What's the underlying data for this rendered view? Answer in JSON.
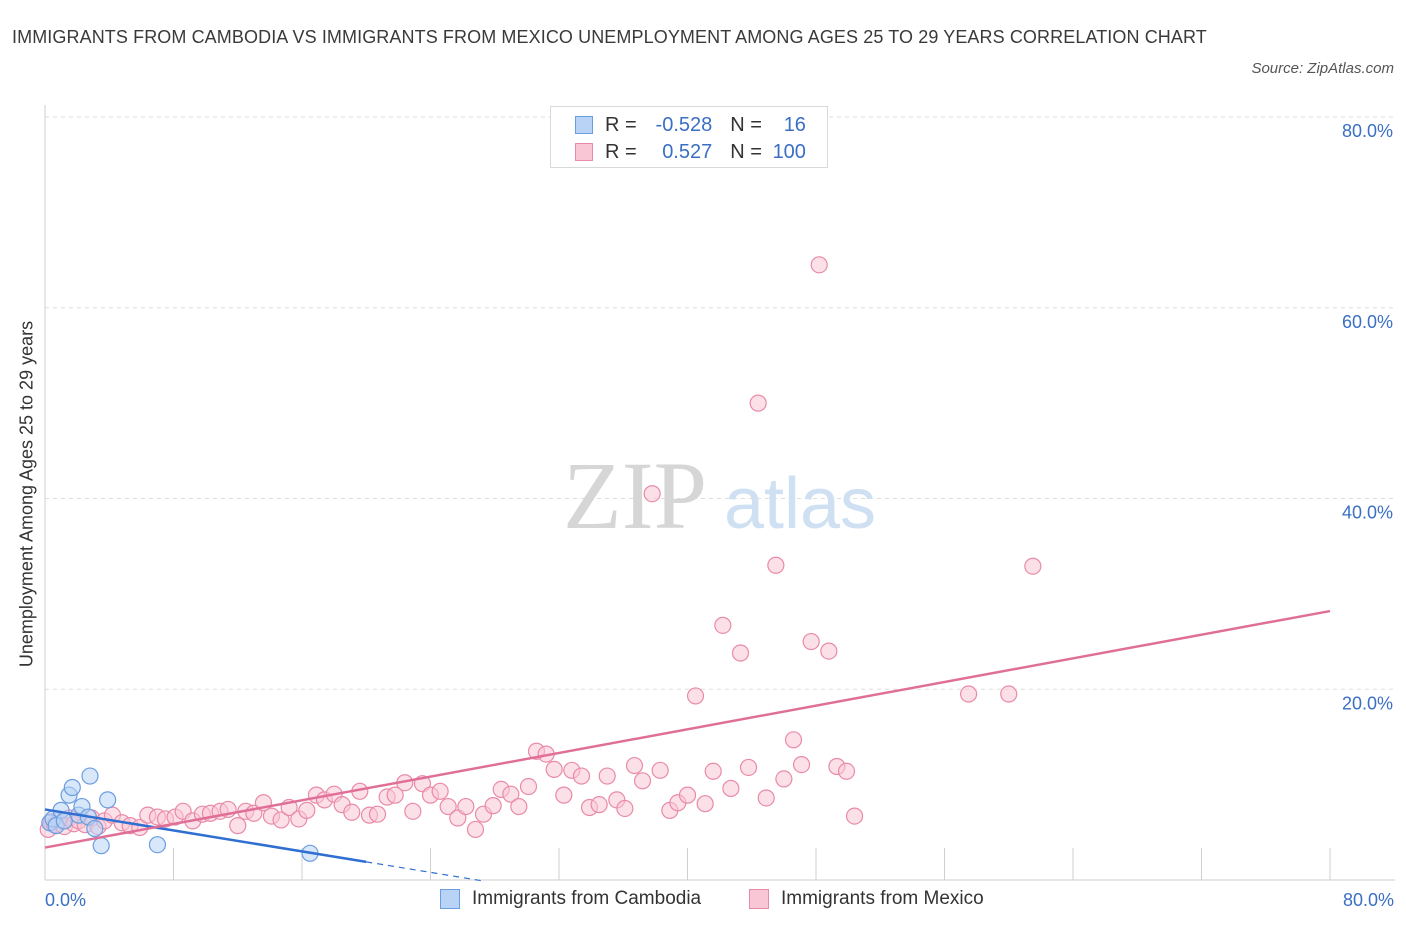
{
  "header": {
    "title": "IMMIGRANTS FROM CAMBODIA VS IMMIGRANTS FROM MEXICO UNEMPLOYMENT AMONG AGES 25 TO 29 YEARS CORRELATION CHART",
    "source": "Source: ZipAtlas.com"
  },
  "watermark": {
    "zip": "ZIP",
    "atlas": "atlas"
  },
  "legend": {
    "cambodia": {
      "r_label": "R =",
      "r_value": "-0.528",
      "n_label": "N =",
      "n_value": "16"
    },
    "mexico": {
      "r_label": "R =",
      "r_value": "0.527",
      "n_label": "N =",
      "n_value": "100"
    }
  },
  "colors": {
    "cambodia_fill": "#b8d3f5",
    "cambodia_stroke": "#6a9ee0",
    "cambodia_line": "#2f6fd1",
    "mexico_fill": "#f9c6d5",
    "mexico_stroke": "#e98aa8",
    "mexico_line": "#e06f98",
    "grid": "#dddddd",
    "axis_text": "#3a6fc4"
  },
  "chart_data": {
    "type": "scatter",
    "title": "IMMIGRANTS FROM CAMBODIA VS IMMIGRANTS FROM MEXICO UNEMPLOYMENT AMONG AGES 25 TO 29 YEARS CORRELATION CHART",
    "xlabel": "",
    "ylabel": "Unemployment Among Ages 25 to 29 years",
    "xlim": [
      0,
      80
    ],
    "ylim": [
      0,
      80
    ],
    "x_tick_labels": [
      "0.0%",
      "80.0%"
    ],
    "y_tick_labels": [
      "20.0%",
      "40.0%",
      "60.0%",
      "80.0%"
    ],
    "y_ticks": [
      20,
      40,
      60,
      80
    ],
    "grid": true,
    "series": [
      {
        "name": "Immigrants from Cambodia",
        "color_key": "cambodia",
        "r": -0.528,
        "n": 16,
        "trend": {
          "x0": 0,
          "y0": 7.4,
          "x1": 20,
          "y1": 1.9,
          "dash_to_x": 27.3
        },
        "points": [
          [
            0.3,
            6.0
          ],
          [
            0.5,
            6.4
          ],
          [
            0.7,
            5.7
          ],
          [
            1.0,
            7.3
          ],
          [
            1.2,
            6.2
          ],
          [
            1.5,
            8.9
          ],
          [
            1.7,
            9.7
          ],
          [
            2.1,
            6.8
          ],
          [
            2.3,
            7.7
          ],
          [
            2.7,
            6.6
          ],
          [
            2.8,
            10.9
          ],
          [
            3.1,
            5.4
          ],
          [
            3.5,
            3.6
          ],
          [
            3.9,
            8.4
          ],
          [
            7.0,
            3.7
          ],
          [
            16.5,
            2.8
          ]
        ]
      },
      {
        "name": "Immigrants from Mexico",
        "color_key": "mexico",
        "r": 0.527,
        "n": 100,
        "trend": {
          "x0": 0,
          "y0": 3.4,
          "x1": 80,
          "y1": 28.2
        },
        "points": [
          [
            0.2,
            5.3
          ],
          [
            0.4,
            6.1
          ],
          [
            0.6,
            5.8
          ],
          [
            0.9,
            6.3
          ],
          [
            1.2,
            5.6
          ],
          [
            1.5,
            6.5
          ],
          [
            1.8,
            5.9
          ],
          [
            2.1,
            6.2
          ],
          [
            2.5,
            5.8
          ],
          [
            2.9,
            6.5
          ],
          [
            3.3,
            5.6
          ],
          [
            3.7,
            6.2
          ],
          [
            4.2,
            6.8
          ],
          [
            4.8,
            6.0
          ],
          [
            5.3,
            5.7
          ],
          [
            5.9,
            5.5
          ],
          [
            6.4,
            6.8
          ],
          [
            7.0,
            6.6
          ],
          [
            7.5,
            6.4
          ],
          [
            8.1,
            6.6
          ],
          [
            8.6,
            7.2
          ],
          [
            9.2,
            6.2
          ],
          [
            9.8,
            6.9
          ],
          [
            10.3,
            7.0
          ],
          [
            10.9,
            7.2
          ],
          [
            11.4,
            7.4
          ],
          [
            12.0,
            5.7
          ],
          [
            12.5,
            7.2
          ],
          [
            13.0,
            7.0
          ],
          [
            13.6,
            8.1
          ],
          [
            14.1,
            6.7
          ],
          [
            14.7,
            6.3
          ],
          [
            15.2,
            7.6
          ],
          [
            15.8,
            6.4
          ],
          [
            16.3,
            7.3
          ],
          [
            16.9,
            8.9
          ],
          [
            17.4,
            8.4
          ],
          [
            18.0,
            9.0
          ],
          [
            18.5,
            7.9
          ],
          [
            19.1,
            7.1
          ],
          [
            19.6,
            9.3
          ],
          [
            20.2,
            6.8
          ],
          [
            20.7,
            6.9
          ],
          [
            21.3,
            8.7
          ],
          [
            21.8,
            8.9
          ],
          [
            22.4,
            10.2
          ],
          [
            22.9,
            7.2
          ],
          [
            23.5,
            10.1
          ],
          [
            24.0,
            8.9
          ],
          [
            24.6,
            9.3
          ],
          [
            25.1,
            7.7
          ],
          [
            25.7,
            6.5
          ],
          [
            26.2,
            7.7
          ],
          [
            26.8,
            5.3
          ],
          [
            27.3,
            6.9
          ],
          [
            27.9,
            7.8
          ],
          [
            28.4,
            9.5
          ],
          [
            29.0,
            9.0
          ],
          [
            29.5,
            7.7
          ],
          [
            30.1,
            9.8
          ],
          [
            30.6,
            13.5
          ],
          [
            31.2,
            13.2
          ],
          [
            31.7,
            11.6
          ],
          [
            32.3,
            8.9
          ],
          [
            32.8,
            11.5
          ],
          [
            33.4,
            10.9
          ],
          [
            33.9,
            7.6
          ],
          [
            34.5,
            7.9
          ],
          [
            35.0,
            10.9
          ],
          [
            35.6,
            8.4
          ],
          [
            36.1,
            7.5
          ],
          [
            36.7,
            12.0
          ],
          [
            37.2,
            10.4
          ],
          [
            37.8,
            40.5
          ],
          [
            38.3,
            11.5
          ],
          [
            38.9,
            7.3
          ],
          [
            39.4,
            8.1
          ],
          [
            40.0,
            8.9
          ],
          [
            40.5,
            19.3
          ],
          [
            41.1,
            8.0
          ],
          [
            41.6,
            11.4
          ],
          [
            42.2,
            26.7
          ],
          [
            42.7,
            9.6
          ],
          [
            43.3,
            23.8
          ],
          [
            43.8,
            11.8
          ],
          [
            44.4,
            50.0
          ],
          [
            44.9,
            8.6
          ],
          [
            45.5,
            33.0
          ],
          [
            46.0,
            10.6
          ],
          [
            46.6,
            14.7
          ],
          [
            47.1,
            12.1
          ],
          [
            47.7,
            25.0
          ],
          [
            48.2,
            64.5
          ],
          [
            48.8,
            24.0
          ],
          [
            49.3,
            11.9
          ],
          [
            49.9,
            11.4
          ],
          [
            50.4,
            6.7
          ],
          [
            57.5,
            19.5
          ],
          [
            60.0,
            19.5
          ],
          [
            61.5,
            32.9
          ]
        ]
      }
    ]
  },
  "bottom_legend": {
    "cambodia": "Immigrants from Cambodia",
    "mexico": "Immigrants from Mexico"
  }
}
